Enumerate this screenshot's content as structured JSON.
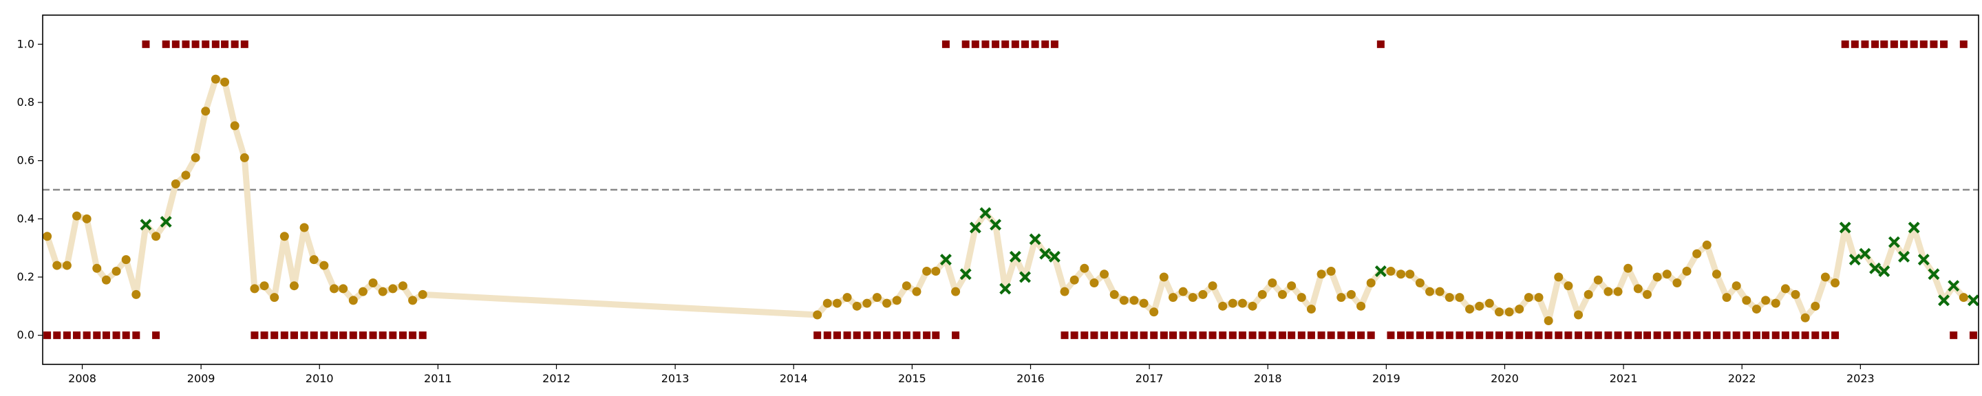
{
  "chart_data": {
    "type": "scatter",
    "xlim": [
      "2007-09-01",
      "2023-12-31"
    ],
    "ylim": [
      -0.1,
      1.1
    ],
    "grid": false,
    "legend": "none",
    "title": "",
    "xlabel": "",
    "ylabel": "",
    "y_ticks": [
      "0.0",
      "0.2",
      "0.4",
      "0.6",
      "0.8",
      "1.0"
    ],
    "x_ticks": [
      "2008",
      "2009",
      "2010",
      "2011",
      "2012",
      "2013",
      "2014",
      "2015",
      "2016",
      "2017",
      "2018",
      "2019",
      "2020",
      "2021",
      "2022",
      "2023"
    ],
    "threshold": 0.5,
    "colors": {
      "line": "#f1e3c5",
      "point": "#b8860b",
      "cross": "#0b6b0b",
      "square": "#8b0000",
      "threshold": "#888888",
      "frame": "#000000"
    },
    "series": [
      {
        "dates": [
          "2007-09",
          "2007-10",
          "2007-11",
          "2007-12",
          "2008-01",
          "2008-02",
          "2008-03",
          "2008-04",
          "2008-05",
          "2008-06",
          "2008-07",
          "2008-08",
          "2008-09",
          "2008-10",
          "2008-11",
          "2008-12",
          "2009-01",
          "2009-02",
          "2009-03",
          "2009-04",
          "2009-05",
          "2009-06",
          "2009-07",
          "2009-08",
          "2009-09",
          "2009-10",
          "2009-11",
          "2009-12",
          "2010-01",
          "2010-02",
          "2010-03",
          "2010-04",
          "2010-05",
          "2010-06",
          "2010-07",
          "2010-08",
          "2010-09",
          "2010-10",
          "2010-11",
          "2014-03",
          "2014-04",
          "2014-05",
          "2014-06",
          "2014-07",
          "2014-08",
          "2014-09",
          "2014-10",
          "2014-11",
          "2014-12",
          "2015-01",
          "2015-02",
          "2015-03",
          "2015-04",
          "2015-05",
          "2015-06",
          "2015-07",
          "2015-08",
          "2015-09",
          "2015-10",
          "2015-11",
          "2015-12",
          "2016-01",
          "2016-02",
          "2016-03",
          "2016-04",
          "2016-05",
          "2016-06",
          "2016-07",
          "2016-08",
          "2016-09",
          "2016-10",
          "2016-11",
          "2016-12",
          "2017-01",
          "2017-02",
          "2017-03",
          "2017-04",
          "2017-05",
          "2017-06",
          "2017-07",
          "2017-08",
          "2017-09",
          "2017-10",
          "2017-11",
          "2017-12",
          "2018-01",
          "2018-02",
          "2018-03",
          "2018-04",
          "2018-05",
          "2018-06",
          "2018-07",
          "2018-08",
          "2018-09",
          "2018-10",
          "2018-11",
          "2018-12",
          "2019-01",
          "2019-02",
          "2019-03",
          "2019-04",
          "2019-05",
          "2019-06",
          "2019-07",
          "2019-08",
          "2019-09",
          "2019-10",
          "2019-11",
          "2019-12",
          "2020-01",
          "2020-02",
          "2020-03",
          "2020-04",
          "2020-05",
          "2020-06",
          "2020-07",
          "2020-08",
          "2020-09",
          "2020-10",
          "2020-11",
          "2020-12",
          "2021-01",
          "2021-02",
          "2021-03",
          "2021-04",
          "2021-05",
          "2021-06",
          "2021-07",
          "2021-08",
          "2021-09",
          "2021-10",
          "2021-11",
          "2021-12",
          "2022-01",
          "2022-02",
          "2022-03",
          "2022-04",
          "2022-05",
          "2022-06",
          "2022-07",
          "2022-08",
          "2022-09",
          "2022-10",
          "2022-11",
          "2022-12",
          "2023-01",
          "2023-02",
          "2023-03",
          "2023-04",
          "2023-05",
          "2023-06",
          "2023-07",
          "2023-08",
          "2023-09",
          "2023-10",
          "2023-11",
          "2023-12"
        ],
        "values": [
          0.34,
          0.24,
          0.24,
          0.41,
          0.4,
          0.23,
          0.19,
          0.22,
          0.26,
          0.14,
          0.38,
          0.34,
          0.39,
          0.52,
          0.55,
          0.61,
          0.77,
          0.88,
          0.87,
          0.72,
          0.61,
          0.16,
          0.17,
          0.13,
          0.34,
          0.17,
          0.37,
          0.26,
          0.24,
          0.16,
          0.16,
          0.12,
          0.15,
          0.18,
          0.15,
          0.16,
          0.17,
          0.12,
          0.14,
          0.07,
          0.11,
          0.11,
          0.13,
          0.1,
          0.11,
          0.13,
          0.11,
          0.12,
          0.17,
          0.15,
          0.22,
          0.22,
          0.26,
          0.15,
          0.21,
          0.37,
          0.42,
          0.38,
          0.16,
          0.27,
          0.2,
          0.33,
          0.28,
          0.27,
          0.15,
          0.19,
          0.23,
          0.18,
          0.21,
          0.14,
          0.12,
          0.12,
          0.11,
          0.08,
          0.2,
          0.13,
          0.15,
          0.13,
          0.14,
          0.17,
          0.1,
          0.11,
          0.11,
          0.1,
          0.14,
          0.18,
          0.14,
          0.17,
          0.13,
          0.09,
          0.21,
          0.22,
          0.13,
          0.14,
          0.1,
          0.18,
          0.22,
          0.22,
          0.21,
          0.21,
          0.18,
          0.15,
          0.15,
          0.13,
          0.13,
          0.09,
          0.1,
          0.11,
          0.08,
          0.08,
          0.09,
          0.13,
          0.13,
          0.05,
          0.2,
          0.17,
          0.07,
          0.14,
          0.19,
          0.15,
          0.15,
          0.23,
          0.16,
          0.14,
          0.2,
          0.21,
          0.18,
          0.22,
          0.28,
          0.31,
          0.21,
          0.13,
          0.17,
          0.12,
          0.09,
          0.12,
          0.11,
          0.16,
          0.14,
          0.06,
          0.1,
          0.2,
          0.18,
          0.37,
          0.26,
          0.28,
          0.23,
          0.22,
          0.32,
          0.27,
          0.37,
          0.26,
          0.21,
          0.12,
          0.17,
          0.13,
          0.12
        ],
        "cross": [
          0,
          0,
          0,
          0,
          0,
          0,
          0,
          0,
          0,
          0,
          1,
          0,
          1,
          0,
          0,
          0,
          0,
          0,
          0,
          0,
          0,
          0,
          0,
          0,
          0,
          0,
          0,
          0,
          0,
          0,
          0,
          0,
          0,
          0,
          0,
          0,
          0,
          0,
          0,
          0,
          0,
          0,
          0,
          0,
          0,
          0,
          0,
          0,
          0,
          0,
          0,
          0,
          1,
          0,
          1,
          1,
          1,
          1,
          1,
          1,
          1,
          1,
          1,
          1,
          0,
          0,
          0,
          0,
          0,
          0,
          0,
          0,
          0,
          0,
          0,
          0,
          0,
          0,
          0,
          0,
          0,
          0,
          0,
          0,
          0,
          0,
          0,
          0,
          0,
          0,
          0,
          0,
          0,
          0,
          0,
          0,
          1,
          0,
          0,
          0,
          0,
          0,
          0,
          0,
          0,
          0,
          0,
          0,
          0,
          0,
          0,
          0,
          0,
          0,
          0,
          0,
          0,
          0,
          0,
          0,
          0,
          0,
          0,
          0,
          0,
          0,
          0,
          0,
          0,
          0,
          0,
          0,
          0,
          0,
          0,
          0,
          0,
          0,
          0,
          0,
          0,
          0,
          0,
          1,
          1,
          1,
          1,
          1,
          1,
          1,
          1,
          1,
          1,
          1,
          1,
          0,
          1
        ],
        "status": [
          0,
          0,
          0,
          0,
          0,
          0,
          0,
          0,
          0,
          0,
          1,
          0,
          1,
          1,
          1,
          1,
          1,
          1,
          1,
          1,
          1,
          0,
          0,
          0,
          0,
          0,
          0,
          0,
          0,
          0,
          0,
          0,
          0,
          0,
          0,
          0,
          0,
          0,
          0,
          0,
          0,
          0,
          0,
          0,
          0,
          0,
          0,
          0,
          0,
          0,
          0,
          0,
          1,
          0,
          1,
          1,
          1,
          1,
          1,
          1,
          1,
          1,
          1,
          1,
          0,
          0,
          0,
          0,
          0,
          0,
          0,
          0,
          0,
          0,
          0,
          0,
          0,
          0,
          0,
          0,
          0,
          0,
          0,
          0,
          0,
          0,
          0,
          0,
          0,
          0,
          0,
          0,
          0,
          0,
          0,
          0,
          1,
          0,
          0,
          0,
          0,
          0,
          0,
          0,
          0,
          0,
          0,
          0,
          0,
          0,
          0,
          0,
          0,
          0,
          0,
          0,
          0,
          0,
          0,
          0,
          0,
          0,
          0,
          0,
          0,
          0,
          0,
          0,
          0,
          0,
          0,
          0,
          0,
          0,
          0,
          0,
          0,
          0,
          0,
          0,
          0,
          0,
          0,
          1,
          1,
          1,
          1,
          1,
          1,
          1,
          1,
          1,
          1,
          1,
          0,
          1,
          0
        ]
      }
    ]
  }
}
